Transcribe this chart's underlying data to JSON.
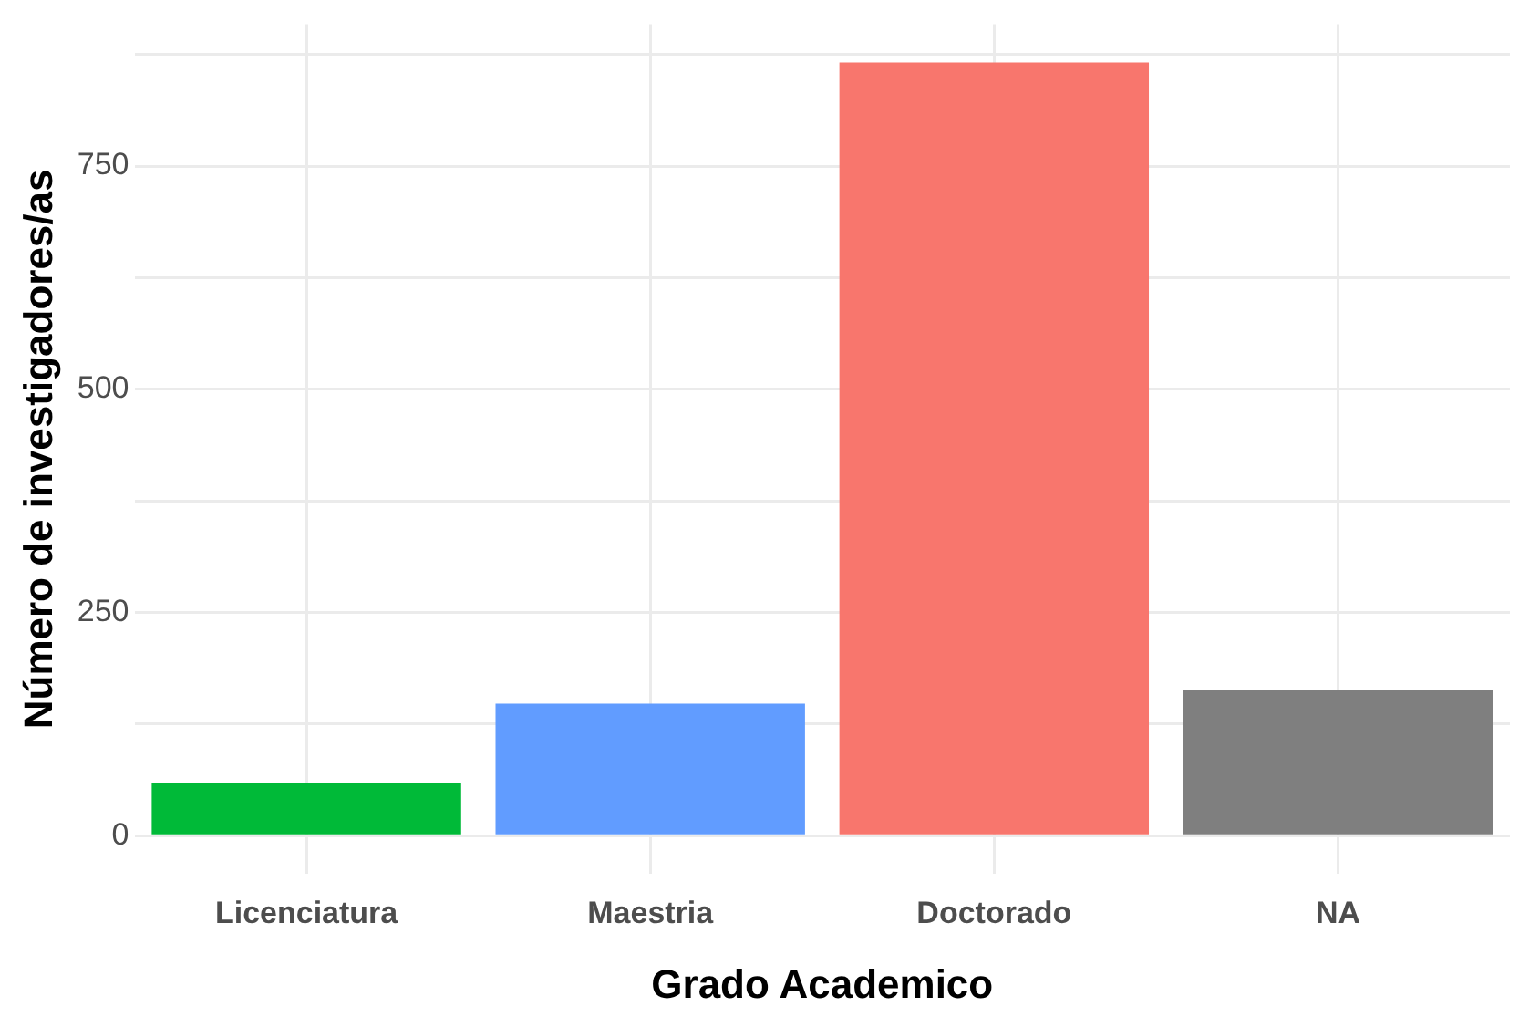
{
  "chart_data": {
    "type": "bar",
    "xlabel": "Grado Academico",
    "ylabel": "Número de investigadores/as",
    "categories": [
      "Licenciatura",
      "Maestria",
      "Doctorado",
      "NA"
    ],
    "values": [
      59,
      148,
      866,
      163
    ],
    "colors": [
      "#00ba38",
      "#619cff",
      "#f8766d",
      "#7f7f7f"
    ],
    "ylim": [
      -43,
      909
    ],
    "yticks": [
      0,
      {
        "value": 125,
        "label": null
      },
      250,
      {
        "value": 375,
        "label": null
      },
      500,
      {
        "value": 625,
        "label": null
      },
      750,
      {
        "value": 875,
        "label": null
      }
    ],
    "grid": true,
    "legend": false
  }
}
